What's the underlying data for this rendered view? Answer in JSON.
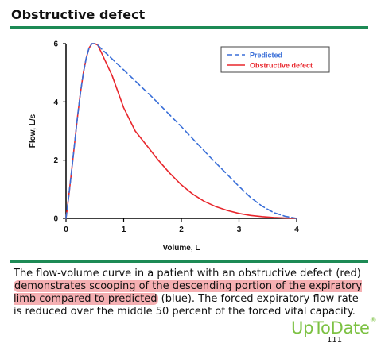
{
  "page": {
    "title": "Obstructive defect",
    "caption": {
      "before": "The flow-volume curve in a patient with an obstructive defect (red) ",
      "highlighted": "demonstrates scooping of the descending portion of the expiratory limb compared to predicted",
      "after": " (blue). The forced expiratory flow rate is reduced over the middle 50 percent of the forced vital capacity."
    },
    "logo": "UpToDate",
    "logo_mark": "®",
    "page_number": "111"
  },
  "colors": {
    "accent_rule": "#1d8a55",
    "predicted": "#3a6fd8",
    "obstructive": "#e8262c",
    "highlight": "#ec6e73",
    "logo": "#7cc142"
  },
  "chart_data": {
    "type": "line",
    "title": "",
    "xlabel": "Volume, L",
    "ylabel": "Flow, L/s",
    "xlim": [
      0,
      4
    ],
    "ylim": [
      0,
      6
    ],
    "xticks": [
      "0",
      "1",
      "2",
      "3",
      "4"
    ],
    "yticks": [
      "0",
      "2",
      "4",
      "6"
    ],
    "grid": false,
    "legend_position": "top-right",
    "series": [
      {
        "name": "Predicted",
        "style": "dashed",
        "color": "#3a6fd8",
        "x": [
          0.0,
          0.05,
          0.1,
          0.15,
          0.2,
          0.25,
          0.3,
          0.35,
          0.4,
          0.45,
          0.5,
          0.55,
          0.6,
          1.0,
          1.5,
          2.0,
          2.5,
          3.0,
          3.2,
          3.4,
          3.6,
          3.8,
          4.0
        ],
        "y": [
          0.0,
          0.8,
          1.7,
          2.6,
          3.5,
          4.3,
          5.0,
          5.5,
          5.85,
          6.0,
          6.0,
          5.95,
          5.85,
          5.1,
          4.15,
          3.15,
          2.1,
          1.1,
          0.72,
          0.42,
          0.2,
          0.07,
          0.0
        ]
      },
      {
        "name": "Obstructive defect",
        "style": "solid",
        "color": "#e8262c",
        "x": [
          0.0,
          0.05,
          0.1,
          0.15,
          0.2,
          0.25,
          0.3,
          0.35,
          0.4,
          0.45,
          0.5,
          0.55,
          0.6,
          0.8,
          1.0,
          1.2,
          1.4,
          1.6,
          1.8,
          2.0,
          2.2,
          2.4,
          2.6,
          2.8,
          3.0,
          3.2,
          3.4,
          3.6,
          3.8,
          4.0
        ],
        "y": [
          0.0,
          0.8,
          1.7,
          2.6,
          3.5,
          4.3,
          5.0,
          5.5,
          5.85,
          6.0,
          6.0,
          5.95,
          5.75,
          4.9,
          3.8,
          3.0,
          2.5,
          2.0,
          1.55,
          1.15,
          0.83,
          0.58,
          0.4,
          0.27,
          0.17,
          0.1,
          0.06,
          0.03,
          0.01,
          0.0
        ]
      }
    ]
  }
}
